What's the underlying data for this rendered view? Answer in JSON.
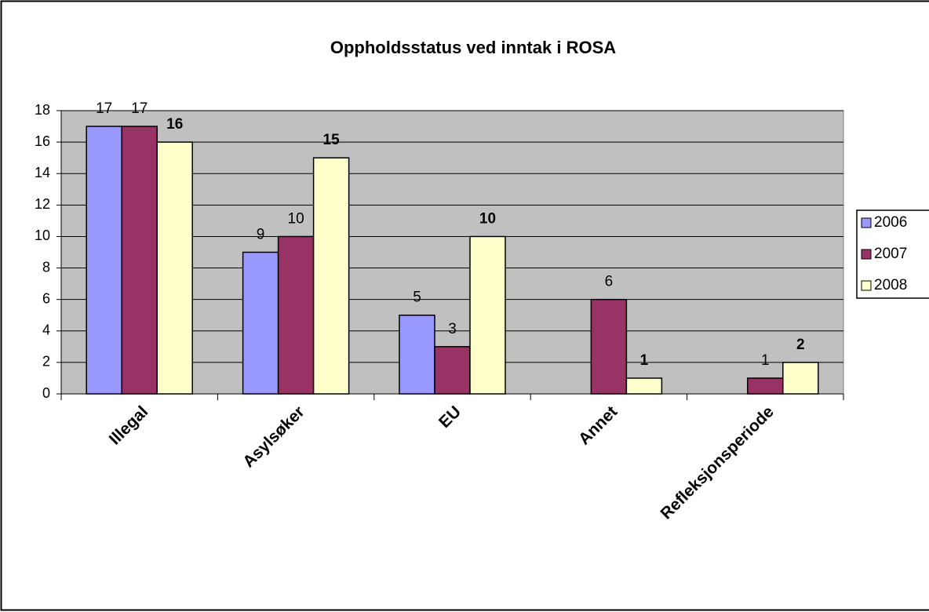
{
  "chart_data": {
    "type": "bar",
    "title": "Oppholdsstatus ved inntak i ROSA",
    "categories": [
      "Illegal",
      "Asylsøker",
      "EU",
      "Annet",
      "Refleksjonsperiode"
    ],
    "series": [
      {
        "name": "2006",
        "color": "#9999ff",
        "values": [
          17,
          9,
          5,
          null,
          null
        ]
      },
      {
        "name": "2007",
        "color": "#993366",
        "values": [
          17,
          10,
          3,
          6,
          1
        ]
      },
      {
        "name": "2008",
        "color": "#ffffcc",
        "values": [
          16,
          15,
          10,
          1,
          2
        ],
        "bold_labels": true
      }
    ],
    "ylim": [
      0,
      18
    ],
    "yticks": [
      0,
      2,
      4,
      6,
      8,
      10,
      12,
      14,
      16,
      18
    ],
    "grid": true,
    "legend": "right",
    "plot_background": "#c0c0c0"
  }
}
